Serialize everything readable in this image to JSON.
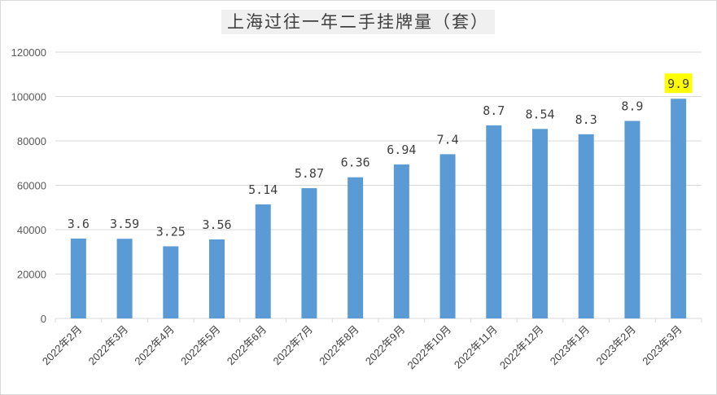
{
  "chart_data": {
    "type": "bar",
    "title": "上海过往一年二手挂牌量（套）",
    "categories": [
      "2022年2月",
      "2022年3月",
      "2022年4月",
      "2022年5月",
      "2022年6月",
      "2022年7月",
      "2022年8月",
      "2022年9月",
      "2022年10月",
      "2022年11月",
      "2022年12月",
      "2023年1月",
      "2023年2月",
      "2023年3月"
    ],
    "values": [
      36000,
      35900,
      32500,
      35600,
      51400,
      58700,
      63600,
      69400,
      74000,
      87000,
      85400,
      83000,
      89000,
      99000
    ],
    "data_labels": [
      "3.6",
      "3.59",
      "3.25",
      "3.56",
      "5.14",
      "5.87",
      "6.36",
      "6.94",
      "7.4",
      "8.7",
      "8.54",
      "8.3",
      "8.9",
      "9.9"
    ],
    "highlighted_label_index": 13,
    "ylim": [
      0,
      120000
    ],
    "yticks": [
      0,
      20000,
      40000,
      60000,
      80000,
      100000,
      120000
    ],
    "grid": true,
    "legend": "none",
    "colors": {
      "bar": "#5b9bd5",
      "highlight": "#ffff00",
      "grid": "#d9d9d9"
    }
  }
}
